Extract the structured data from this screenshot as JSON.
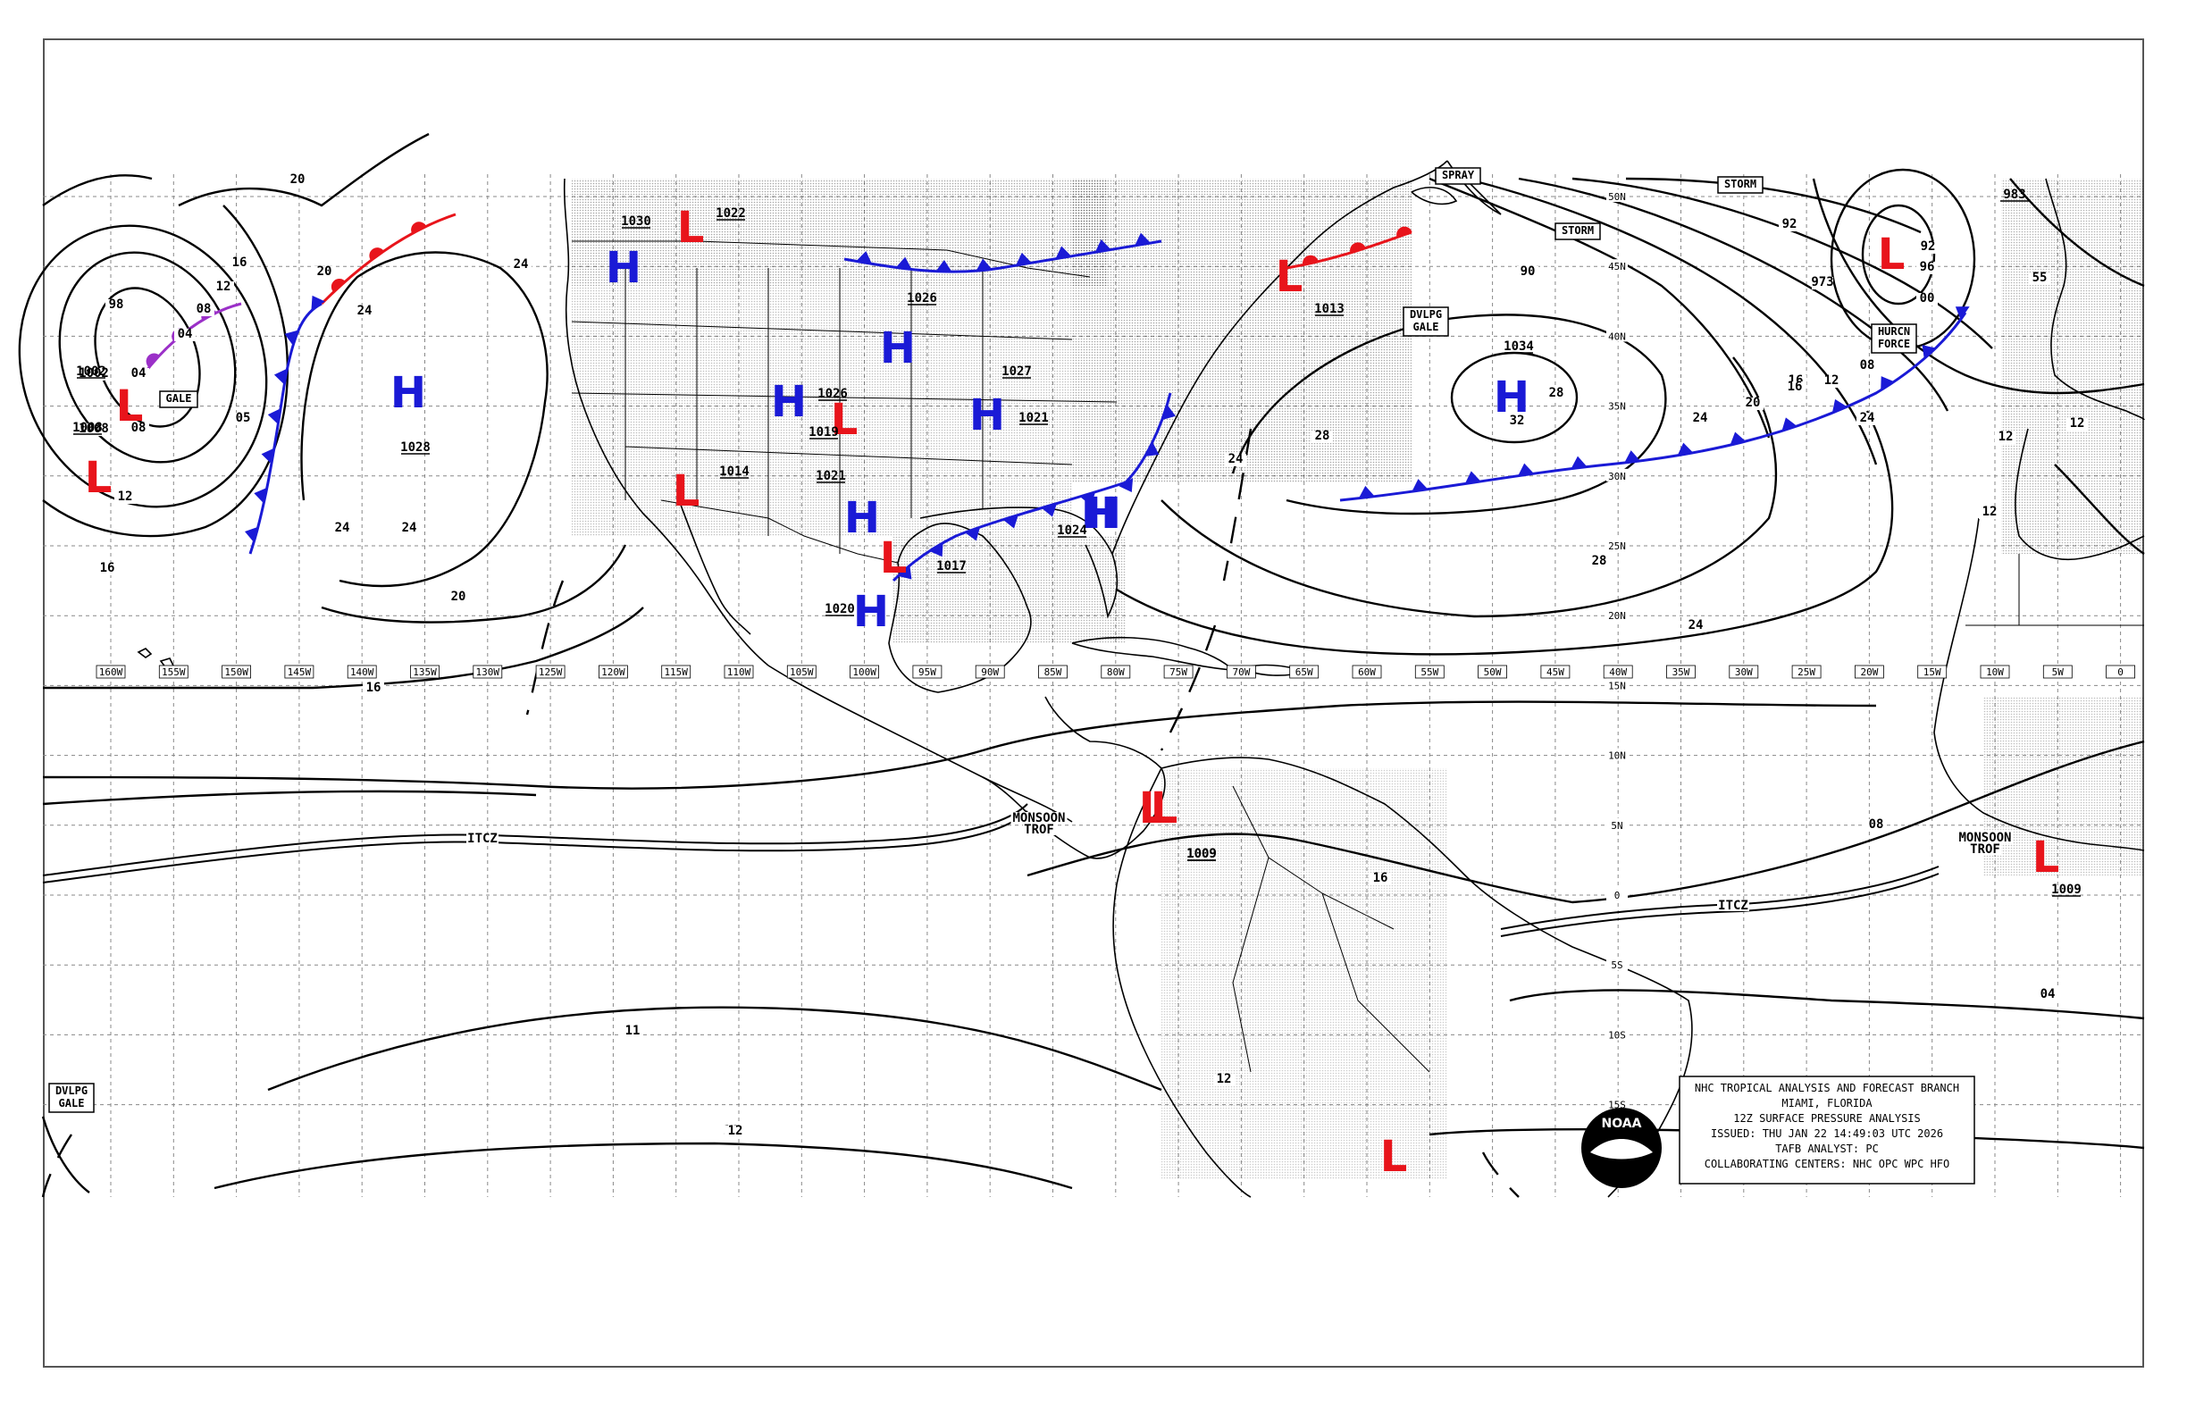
{
  "credit": {
    "lines": [
      "NHC TROPICAL ANALYSIS AND FORECAST BRANCH",
      "MIAMI, FLORIDA",
      "12Z SURFACE PRESSURE ANALYSIS",
      "ISSUED: THU JAN 22 14:49:03 UTC 2026",
      "TAFB ANALYST: PC",
      "COLLABORATING CENTERS: NHC OPC WPC HFO"
    ],
    "logo_text": "NOAA"
  },
  "longitudes": [
    "160W",
    "155W",
    "150W",
    "145W",
    "140W",
    "135W",
    "130W",
    "125W",
    "120W",
    "115W",
    "110W",
    "105W",
    "100W",
    "95W",
    "90W",
    "85W",
    "80W",
    "75W",
    "70W",
    "65W",
    "60W",
    "55W",
    "50W",
    "45W",
    "40W",
    "35W",
    "30W",
    "25W",
    "20W",
    "15W",
    "10W",
    "5W",
    "0"
  ],
  "latitudes": [
    "50N",
    "45N",
    "40N",
    "35N",
    "30N",
    "25N",
    "20N",
    "15N",
    "10N",
    "5N",
    "0",
    "5S",
    "10S",
    "15S"
  ],
  "pressure_centers": [
    {
      "type": "H",
      "value": "1030"
    },
    {
      "type": "L",
      "value": "1022"
    },
    {
      "type": "L",
      "value": ""
    },
    {
      "type": "H",
      "value": "1028"
    },
    {
      "type": "H",
      "value": "1026"
    },
    {
      "type": "H",
      "value": "1026"
    },
    {
      "type": "L",
      "value": "1019"
    },
    {
      "type": "H",
      "value": "1027"
    },
    {
      "type": "H",
      "value": "1021"
    },
    {
      "type": "L",
      "value": "1014"
    },
    {
      "type": "H",
      "value": "1021"
    },
    {
      "type": "L",
      "value": "1017"
    },
    {
      "type": "H",
      "value": "1020"
    },
    {
      "type": "H",
      "value": "1024"
    },
    {
      "type": "L",
      "value": "1013"
    },
    {
      "type": "H",
      "value": "1034"
    },
    {
      "type": "L",
      "value": "1002"
    },
    {
      "type": "L",
      "value": "1008"
    },
    {
      "type": "L",
      "value": "983"
    },
    {
      "type": "L",
      "value": "1009"
    },
    {
      "type": "L",
      "value": "1009"
    },
    {
      "type": "L",
      "value": "1009"
    },
    {
      "type": "L",
      "value": ""
    }
  ],
  "isobar_labels": [
    "20",
    "16",
    "20",
    "24",
    "24",
    "24",
    "24",
    "20",
    "16",
    "16",
    "12",
    "98",
    "08",
    "04",
    "04",
    "08",
    "12",
    "05",
    "1002",
    "1008",
    "28",
    "24",
    "20",
    "16",
    "24",
    "28",
    "32",
    "28",
    "24",
    "20",
    "16",
    "12",
    "90",
    "24",
    "92",
    "973",
    "08",
    "00",
    "96",
    "92",
    "55",
    "12",
    "12",
    "12",
    "16",
    "04",
    "08",
    "11",
    "16",
    "12",
    "12"
  ],
  "warnings": [
    "SPRAY",
    "STORM",
    "STORM",
    "DVLPG GALE",
    "GALE",
    "HURCN FORCE",
    "DVLPG GALE"
  ],
  "features": [
    "ITCZ",
    "ITCZ",
    "MONSOON TROF",
    "MONSOON TROF"
  ],
  "colors": {
    "low": "#e8141b",
    "high": "#1a1ad6",
    "occluded": "#9b30c8",
    "line": "#000000",
    "grid": "#888888"
  }
}
